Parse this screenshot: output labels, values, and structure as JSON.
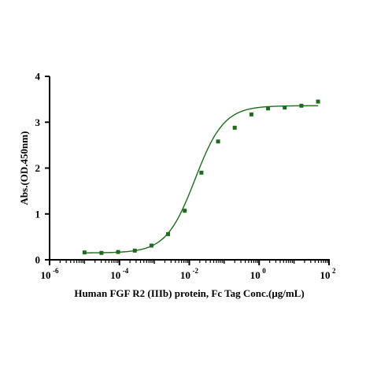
{
  "chart_data": {
    "type": "scatter",
    "title": "",
    "xlabel": "Human FGF R2 (IIIb) protein, Fc Tag Conc.(μg/mL)",
    "ylabel": "Abs.(OD.450nm)",
    "x_scale": "log",
    "xlim": [
      1e-06,
      100
    ],
    "ylim": [
      0,
      4
    ],
    "x_ticks": [
      {
        "value": 1e-06,
        "base": "10",
        "exp": "-6"
      },
      {
        "value": 0.0001,
        "base": "10",
        "exp": "-4"
      },
      {
        "value": 0.01,
        "base": "10",
        "exp": "-2"
      },
      {
        "value": 1,
        "base": "10",
        "exp": "0"
      },
      {
        "value": 100,
        "base": "10",
        "exp": "2"
      }
    ],
    "y_ticks": [
      "0",
      "1",
      "2",
      "3",
      "4"
    ],
    "grid": false,
    "legend": "none",
    "series": [
      {
        "x": [
          1e-05,
          3.05e-05,
          9.16e-05,
          0.000275,
          0.000824,
          0.00247,
          0.00741,
          0.0222,
          0.0667,
          0.2,
          0.6,
          1.8,
          5.4,
          16.2,
          48.6
        ],
        "y": [
          0.16,
          0.15,
          0.17,
          0.2,
          0.31,
          0.56,
          1.07,
          1.9,
          2.58,
          2.88,
          3.17,
          3.3,
          3.32,
          3.36,
          3.45
        ],
        "fit": {
          "model": "4PL",
          "bottom": 0.15,
          "top": 3.36,
          "ec50": 0.0146,
          "hill": 1.05
        },
        "color": "#1e6b1e"
      }
    ]
  }
}
